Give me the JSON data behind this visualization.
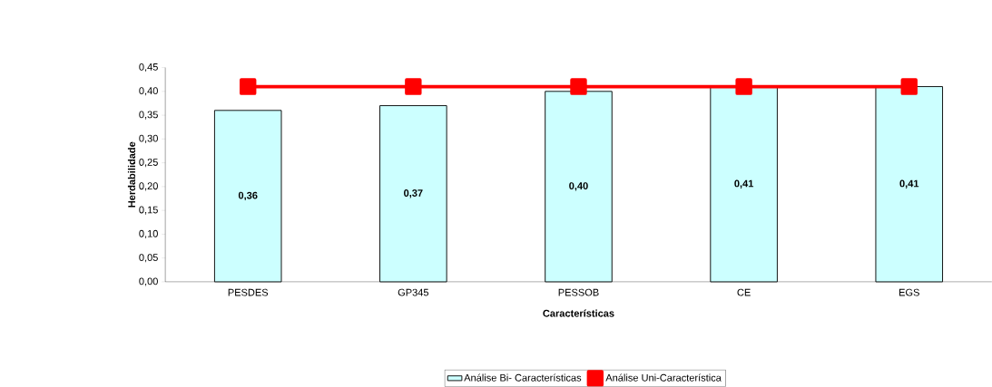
{
  "chart_data": {
    "type": "bar",
    "xlabel": "Características",
    "ylabel": "Herdabilidade",
    "categories": [
      "PESDES",
      "GP345",
      "PESSOB",
      "CE",
      "EGS"
    ],
    "series": [
      {
        "name": "Análise Bi- Características",
        "color": "#ccffff",
        "values": [
          0.36,
          0.37,
          0.4,
          0.41,
          0.41
        ],
        "value_labels": [
          "0,36",
          "0,37",
          "0,40",
          "0,41",
          "0,41"
        ]
      },
      {
        "name": "Análise Uni-Característica",
        "type": "line",
        "color": "#ff0000",
        "marker": "square",
        "line_style": "solid",
        "values": [
          0.41,
          0.41,
          0.41,
          0.41,
          0.41
        ]
      }
    ],
    "ylim": [
      0,
      0.45
    ],
    "yticks": [
      {
        "value": 0,
        "label": "0,00"
      },
      {
        "value": 0.05,
        "label": "0,05"
      },
      {
        "value": 0.1,
        "label": "0,10"
      },
      {
        "value": 0.15,
        "label": "0,15"
      },
      {
        "value": 0.2,
        "label": "0,20"
      },
      {
        "value": 0.25,
        "label": "0,25"
      },
      {
        "value": 0.3,
        "label": "0,30"
      },
      {
        "value": 0.35,
        "label": "0,35"
      },
      {
        "value": 0.4,
        "label": "0,40"
      },
      {
        "value": 0.45,
        "label": "0,45"
      }
    ],
    "legend": "bottom",
    "grid": false
  }
}
